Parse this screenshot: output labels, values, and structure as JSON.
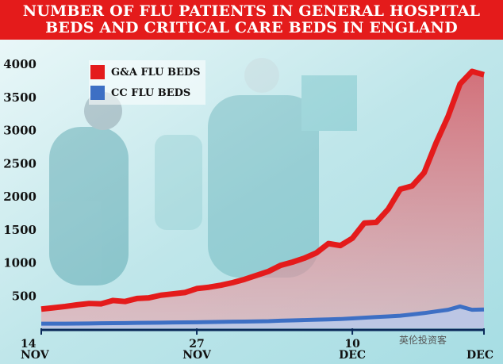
{
  "title": "NUMBER OF FLU PATIENTS IN GENERAL HOSPITAL BEDS AND CRITICAL CARE BEDS IN ENGLAND",
  "watermark": "英伦投资客",
  "chart_data": {
    "type": "area",
    "x": [
      "14 Nov",
      "15 Nov",
      "16 Nov",
      "17 Nov",
      "18 Nov",
      "19 Nov",
      "20 Nov",
      "21 Nov",
      "22 Nov",
      "23 Nov",
      "24 Nov",
      "25 Nov",
      "26 Nov",
      "27 Nov",
      "28 Nov",
      "29 Nov",
      "30 Nov",
      "1 Dec",
      "2 Dec",
      "3 Dec",
      "4 Dec",
      "5 Dec",
      "6 Dec",
      "7 Dec",
      "8 Dec",
      "9 Dec",
      "10 Dec",
      "11 Dec",
      "12 Dec",
      "13 Dec",
      "14 Dec",
      "15 Dec",
      "16 Dec",
      "17 Dec",
      "18 Dec",
      "19 Dec",
      "20 Dec",
      "21 Dec"
    ],
    "x_tick_labels": [
      {
        "index": 0,
        "line1": "14",
        "line2": "NOV"
      },
      {
        "index": 13,
        "line1": "27",
        "line2": "NOV"
      },
      {
        "index": 26,
        "line1": "10",
        "line2": "DEC"
      },
      {
        "index": 37,
        "line1": "",
        "line2": "DEC"
      }
    ],
    "series": [
      {
        "name": "G&A FLU BEDS",
        "color": "#e41b1b",
        "values": [
          290,
          310,
          330,
          355,
          375,
          370,
          420,
          405,
          450,
          460,
          500,
          520,
          540,
          600,
          620,
          650,
          690,
          740,
          800,
          860,
          950,
          1000,
          1060,
          1140,
          1280,
          1250,
          1360,
          1590,
          1600,
          1800,
          2100,
          2150,
          2350,
          2800,
          3200,
          3690,
          3880,
          3830
        ]
      },
      {
        "name": "CC FLU BEDS",
        "color": "#3d6fc4",
        "values": [
          70,
          70,
          70,
          72,
          74,
          76,
          78,
          80,
          82,
          84,
          86,
          88,
          90,
          92,
          95,
          98,
          100,
          102,
          105,
          108,
          115,
          120,
          125,
          130,
          135,
          140,
          150,
          160,
          170,
          180,
          190,
          210,
          230,
          255,
          280,
          330,
          280,
          285
        ]
      }
    ],
    "ylim": [
      0,
      4000
    ],
    "yticks": [
      500,
      1000,
      1500,
      2000,
      2500,
      3000,
      3500,
      4000
    ],
    "grid": false,
    "legend_position": "top-left"
  }
}
